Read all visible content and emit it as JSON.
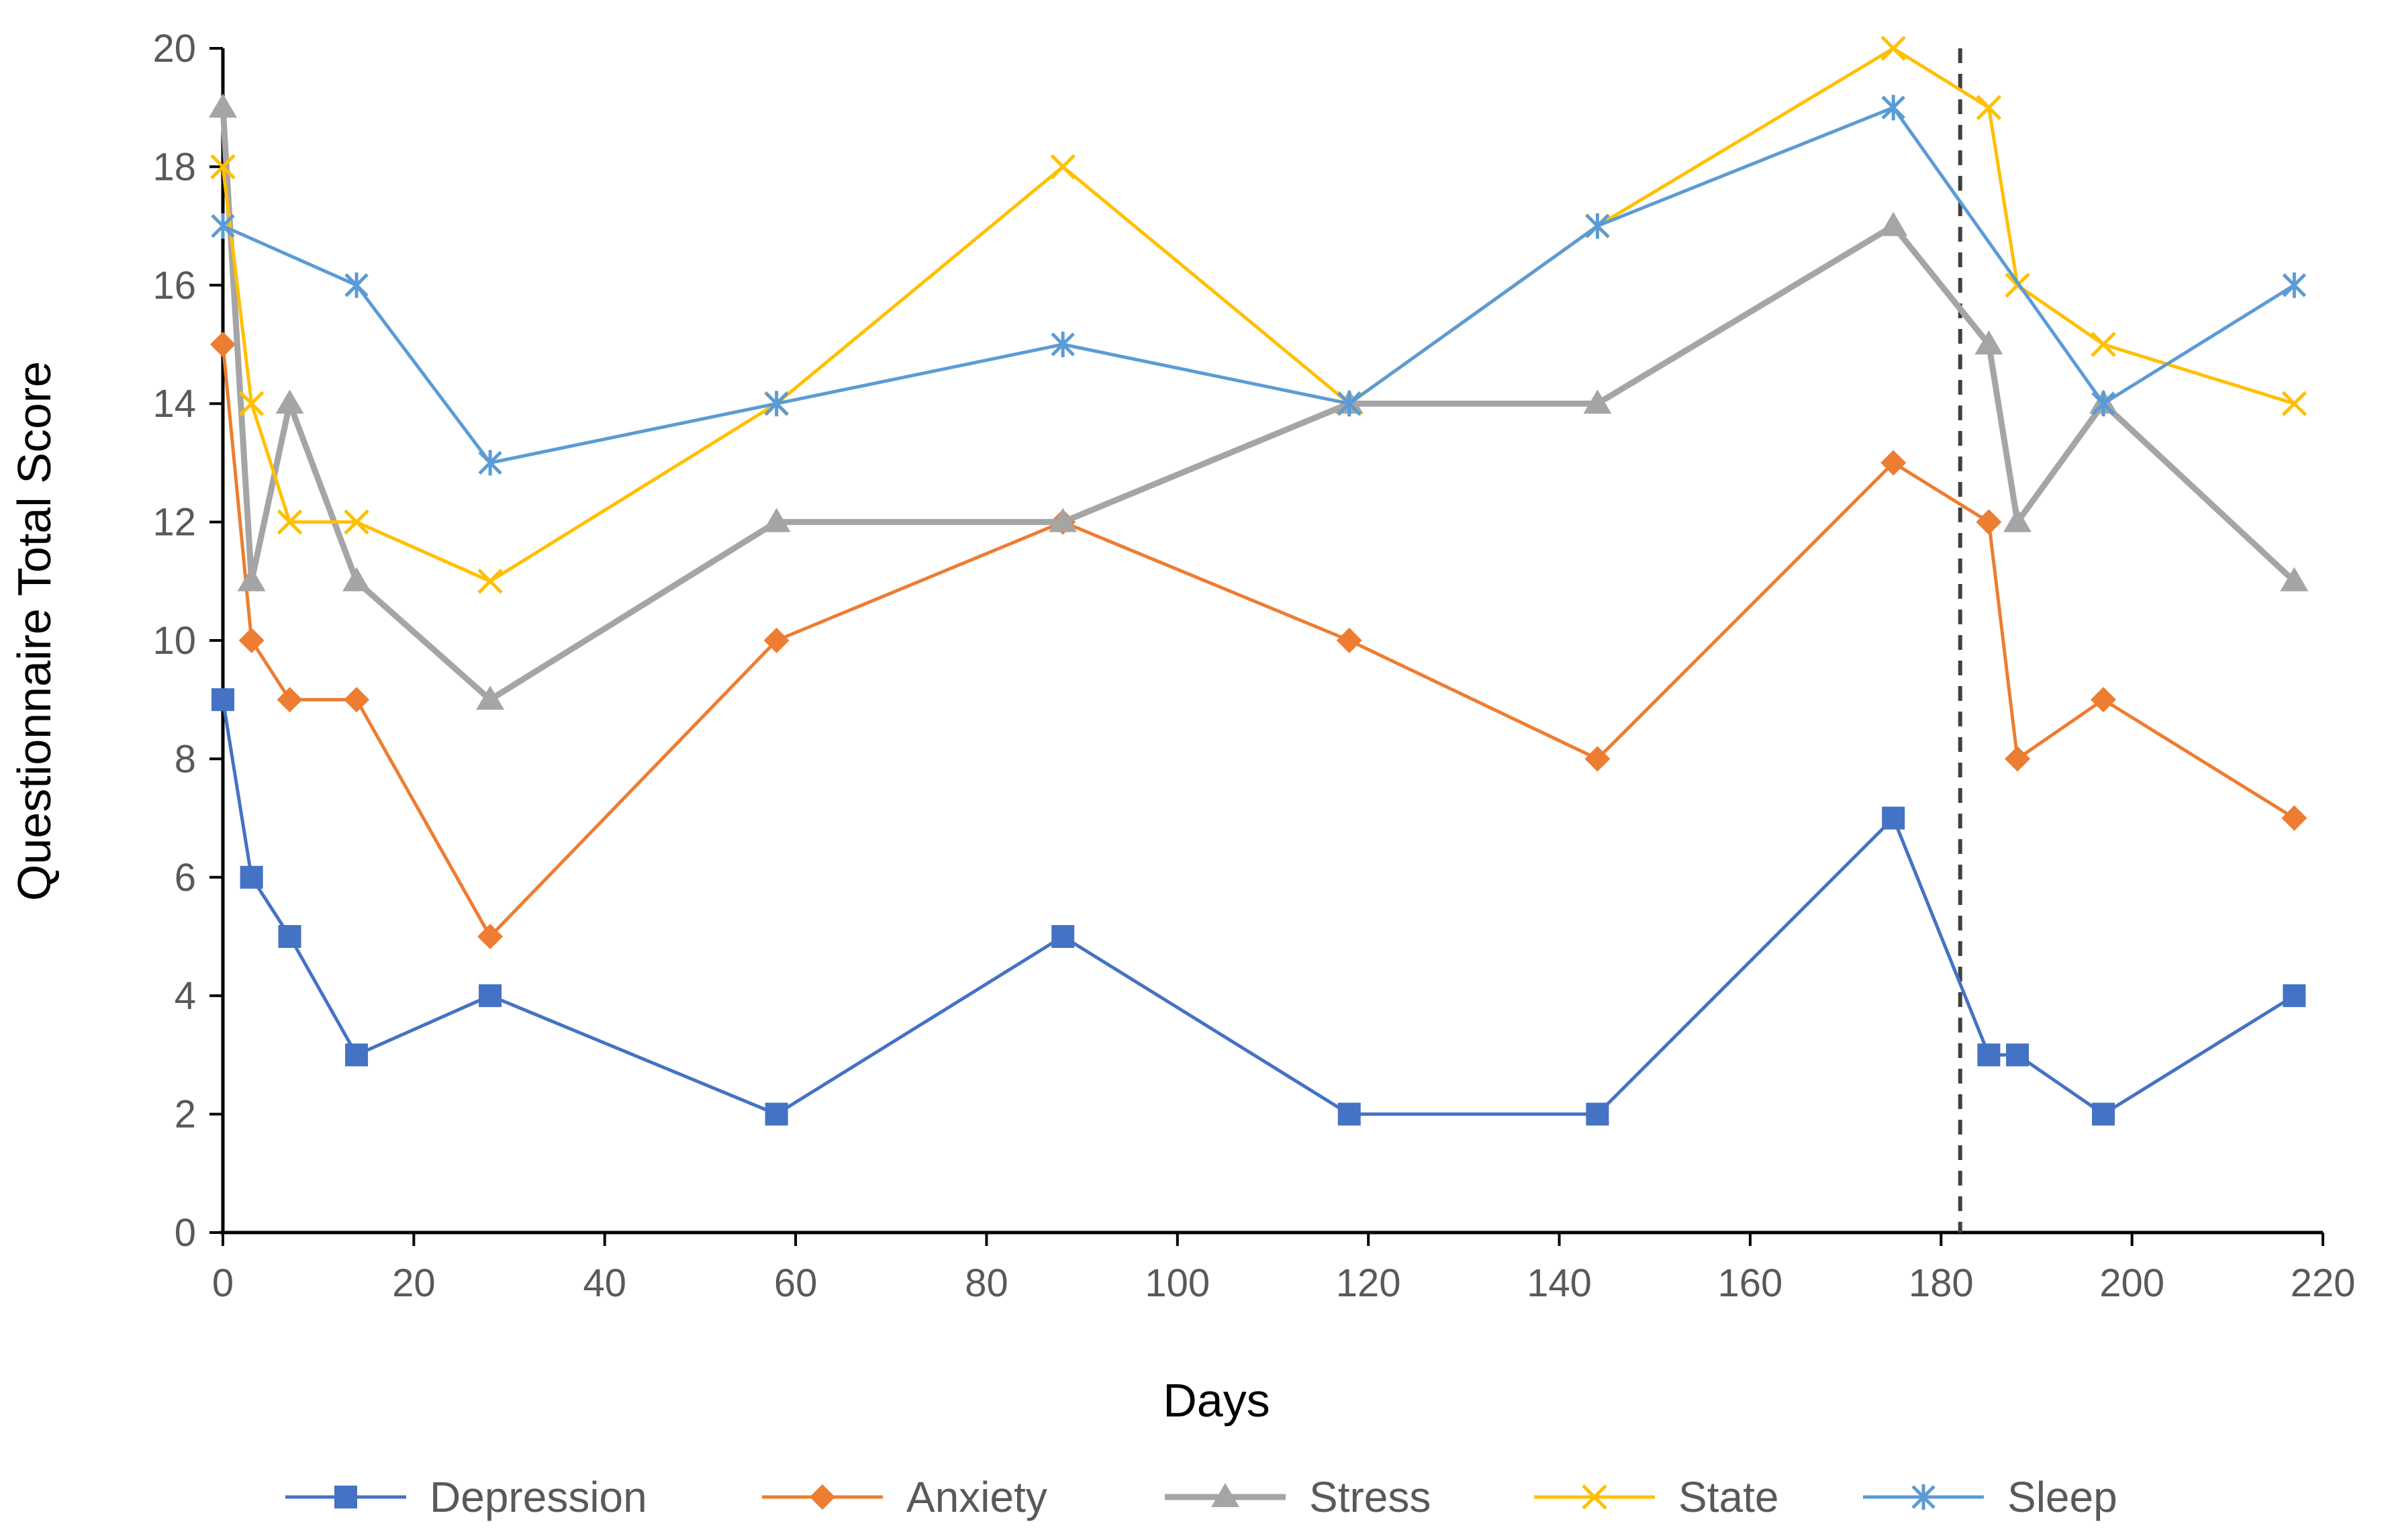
{
  "chart_data": {
    "type": "line",
    "title": "",
    "xlabel": "Days",
    "ylabel": "Questionnaire Total Score",
    "xlim": [
      0,
      220
    ],
    "ylim": [
      0,
      20
    ],
    "x_ticks": [
      0,
      20,
      40,
      60,
      80,
      100,
      120,
      140,
      160,
      180,
      200,
      220
    ],
    "y_ticks": [
      0,
      2,
      4,
      6,
      8,
      10,
      12,
      14,
      16,
      18,
      20
    ],
    "grid": false,
    "legend_position": "bottom",
    "reference_line": {
      "x": 182,
      "style": "dashed",
      "color": "#404040"
    },
    "series": [
      {
        "name": "Depression",
        "color": "#4472C4",
        "marker": "square",
        "x": [
          0,
          3,
          7,
          14,
          28,
          58,
          88,
          118,
          144,
          175,
          185,
          188,
          197,
          217
        ],
        "values": [
          9,
          6,
          5,
          3,
          4,
          2,
          5,
          2,
          2,
          7,
          3,
          3,
          2,
          4
        ]
      },
      {
        "name": "Anxiety",
        "color": "#ED7D31",
        "marker": "diamond",
        "x": [
          0,
          3,
          7,
          14,
          28,
          58,
          88,
          118,
          144,
          175,
          185,
          188,
          197,
          217
        ],
        "values": [
          15,
          10,
          9,
          9,
          5,
          10,
          12,
          10,
          8,
          13,
          12,
          8,
          9,
          7
        ]
      },
      {
        "name": "Stress",
        "color": "#A5A5A5",
        "marker": "triangle",
        "x": [
          0,
          3,
          7,
          14,
          28,
          58,
          88,
          118,
          144,
          175,
          185,
          188,
          197,
          217
        ],
        "values": [
          19,
          11,
          14,
          11,
          9,
          12,
          12,
          14,
          14,
          17,
          15,
          12,
          14,
          11
        ]
      },
      {
        "name": "State",
        "color": "#FFC000",
        "marker": "x",
        "x": [
          0,
          3,
          7,
          14,
          28,
          58,
          88,
          118,
          144,
          175,
          185,
          188,
          197,
          217
        ],
        "values": [
          18,
          14,
          12,
          12,
          11,
          14,
          18,
          14,
          17,
          20,
          19,
          16,
          15,
          14
        ]
      },
      {
        "name": "Sleep",
        "color": "#5B9BD5",
        "marker": "asterisk",
        "x": [
          0,
          14,
          28,
          58,
          88,
          118,
          144,
          175,
          197,
          217
        ],
        "values": [
          17,
          16,
          13,
          14,
          15,
          14,
          17,
          19,
          14,
          16
        ]
      }
    ]
  }
}
